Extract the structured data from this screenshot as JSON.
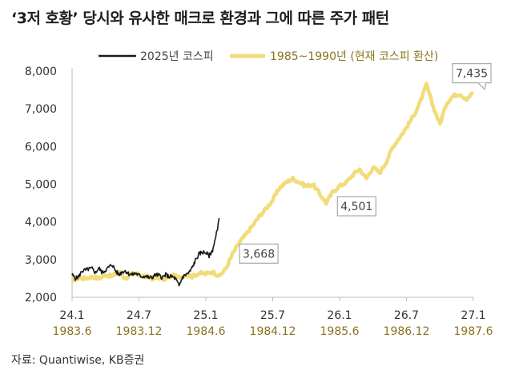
{
  "title": "‘3저 호황’ 당시와 유사한 매크로 환경과 그에 따른 주가 패턴",
  "source": "자료: Quantiwise, KB증권",
  "colors": {
    "kospi_2025": "#1a1a1a",
    "kospi_1985": "#f2dc7a",
    "tick_secondary": "#8a7420",
    "callout_border": "#a8a8a8"
  },
  "chart_data": {
    "type": "line",
    "ylim": [
      2000,
      8000
    ],
    "y_ticks": [
      "2,000",
      "3,000",
      "4,000",
      "5,000",
      "6,000",
      "7,000",
      "8,000"
    ],
    "x_ticks_primary": [
      "24.1",
      "24.7",
      "25.1",
      "25.7",
      "26.1",
      "26.7",
      "27.1"
    ],
    "x_ticks_secondary": [
      "1983.6",
      "1983.12",
      "1984.6",
      "1984.12",
      "1985.6",
      "1986.12",
      "1987.6"
    ],
    "grid": false,
    "legend_position": "top",
    "series": [
      {
        "name": "2025년 코스피",
        "x": [
          0,
          0.5,
          1,
          1.5,
          2,
          2.5,
          3,
          3.5,
          4,
          4.5,
          5,
          5.5,
          6,
          6.5,
          7,
          7.5,
          8,
          8.5,
          9,
          9.5,
          10,
          10.5,
          11,
          11.5,
          12,
          12.5,
          13,
          13.5,
          14,
          14.5,
          15,
          15.5,
          16,
          16.5,
          17,
          17.5,
          18,
          18.5,
          19,
          19.5,
          20,
          20.5,
          21,
          21.5,
          22
        ],
        "values": [
          2600,
          2500,
          2550,
          2700,
          2720,
          2750,
          2760,
          2650,
          2780,
          2650,
          2720,
          2800,
          2870,
          2700,
          2600,
          2680,
          2700,
          2620,
          2600,
          2640,
          2580,
          2550,
          2560,
          2520,
          2530,
          2600,
          2580,
          2520,
          2600,
          2540,
          2550,
          2480,
          2300,
          2530,
          2600,
          2650,
          2800,
          3000,
          3150,
          3200,
          3180,
          3100,
          3250,
          3600,
          4100
        ]
      },
      {
        "name": "1985~1990년 (현재 코스피 환산)",
        "x": [
          0,
          1,
          2,
          3,
          4,
          5,
          6,
          7,
          8,
          9,
          10,
          11,
          12,
          13,
          14,
          15,
          16,
          17,
          18,
          19,
          20,
          21,
          22,
          23,
          24,
          25,
          26,
          27,
          28,
          29,
          30,
          31,
          32,
          33,
          34,
          35,
          36,
          37,
          38,
          39,
          40,
          41,
          42,
          43,
          44,
          45,
          46,
          47,
          48,
          49,
          50,
          51,
          52,
          53,
          54,
          55,
          56,
          57,
          58,
          59,
          60
        ],
        "values": [
          2450,
          2520,
          2500,
          2550,
          2500,
          2600,
          2550,
          2680,
          2500,
          2620,
          2600,
          2550,
          2500,
          2520,
          2480,
          2580,
          2520,
          2600,
          2550,
          2650,
          2620,
          2680,
          2560,
          2760,
          3150,
          3450,
          3668,
          3900,
          4150,
          4350,
          4580,
          4900,
          5050,
          5150,
          5050,
          4950,
          5000,
          4750,
          4501,
          4800,
          4950,
          5050,
          5250,
          5400,
          5150,
          5450,
          5300,
          5600,
          6000,
          6250,
          6500,
          6800,
          7150,
          7650,
          7050,
          6600,
          7150,
          7350,
          7400,
          7250,
          7435
        ]
      }
    ],
    "annotations": [
      {
        "text": "3,668",
        "x": 26,
        "y": 3668
      },
      {
        "text": "4,501",
        "x": 38,
        "y": 4501
      },
      {
        "text": "7,435",
        "x": 60,
        "y": 7435
      }
    ]
  }
}
